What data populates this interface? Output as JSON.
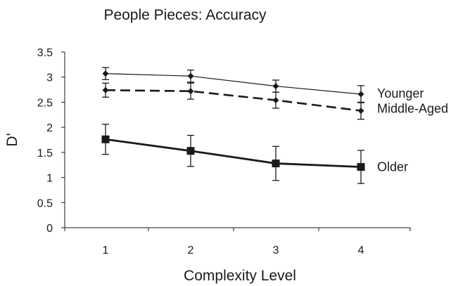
{
  "chart_data": {
    "type": "line",
    "title": "People Pieces: Accuracy",
    "xlabel": "Complexity Level",
    "ylabel": "D'",
    "x": [
      1,
      2,
      3,
      4
    ],
    "x_tick_labels": [
      "1",
      "2",
      "3",
      "4"
    ],
    "ylim": [
      0,
      3.5
    ],
    "y_ticks": [
      0,
      0.5,
      1,
      1.5,
      2,
      2.5,
      3,
      3.5
    ],
    "y_tick_labels": [
      "0",
      "0.5",
      "1",
      "1.5",
      "2",
      "2.5",
      "3",
      "3.5"
    ],
    "grid": false,
    "legend": "labels at line ends (right)",
    "series": [
      {
        "name": "Younger",
        "values": [
          3.07,
          3.02,
          2.82,
          2.66
        ],
        "error": [
          0.12,
          0.12,
          0.12,
          0.17
        ],
        "line_style": "solid-thin",
        "marker": "diamond",
        "color": "#1a1a1a"
      },
      {
        "name": "Middle-Aged",
        "values": [
          2.74,
          2.72,
          2.54,
          2.33
        ],
        "error": [
          0.14,
          0.16,
          0.16,
          0.17
        ],
        "line_style": "dashed",
        "marker": "diamond",
        "color": "#1a1a1a"
      },
      {
        "name": "Older",
        "values": [
          1.76,
          1.53,
          1.28,
          1.21
        ],
        "error": [
          0.3,
          0.31,
          0.34,
          0.33
        ],
        "line_style": "solid-thick",
        "marker": "square",
        "color": "#1a1a1a"
      }
    ]
  }
}
